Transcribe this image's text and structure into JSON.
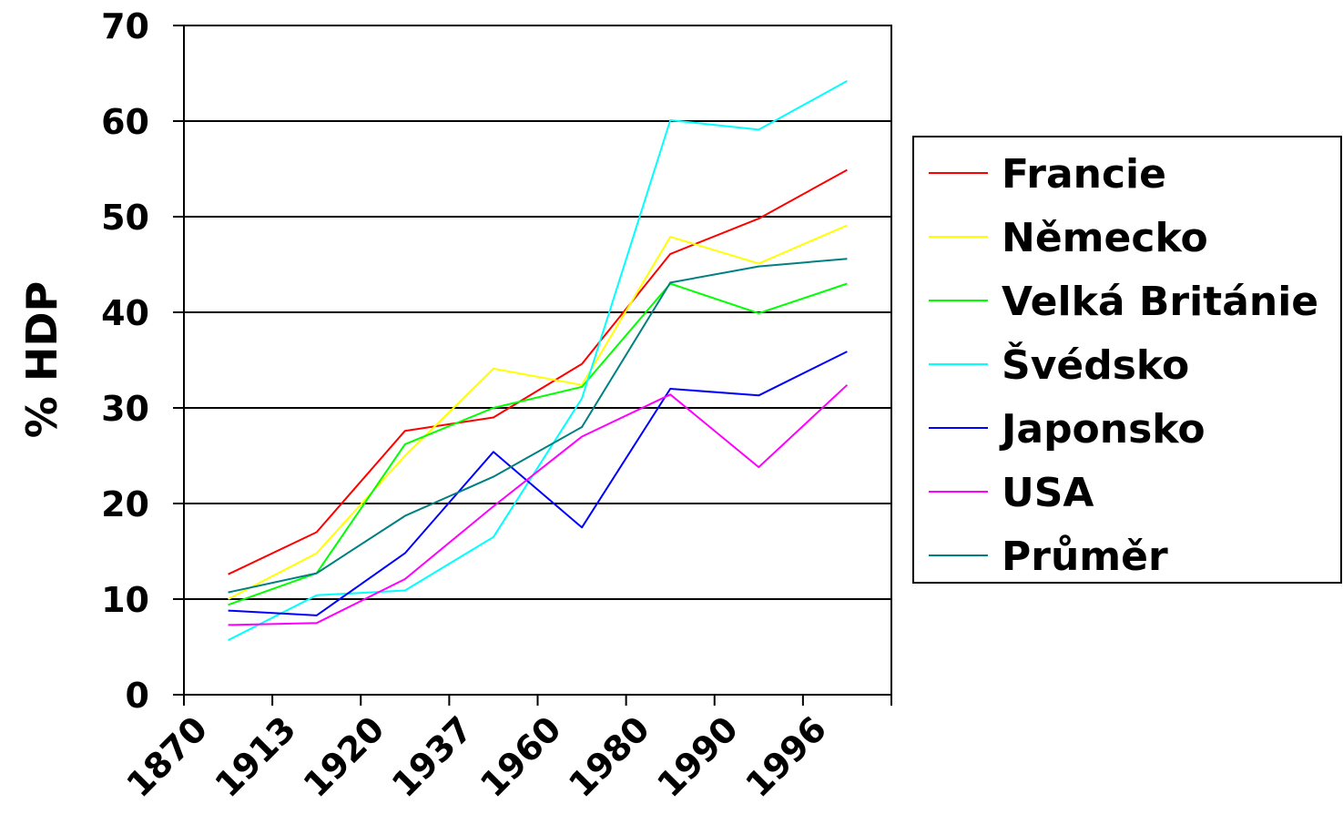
{
  "chart_data": {
    "type": "line",
    "title": "",
    "xlabel": "",
    "ylabel": "% HDP",
    "categories": [
      "1870",
      "1913",
      "1920",
      "1937",
      "1960",
      "1980",
      "1990",
      "1996"
    ],
    "ylim": [
      0,
      70
    ],
    "yticks": [
      0,
      10,
      20,
      30,
      40,
      50,
      60,
      70
    ],
    "grid": true,
    "legend_position": "right",
    "series": [
      {
        "name": "Francie",
        "color": "#ff0000",
        "values": [
          12.6,
          17.0,
          27.6,
          29.0,
          34.6,
          46.1,
          49.8,
          54.9
        ]
      },
      {
        "name": "Německo",
        "color": "#ffff00",
        "values": [
          10.0,
          14.8,
          25.0,
          34.1,
          32.4,
          47.9,
          45.1,
          49.1
        ]
      },
      {
        "name": "Velká Británie",
        "color": "#00ff00",
        "values": [
          9.4,
          12.7,
          26.2,
          30.0,
          32.2,
          43.0,
          39.9,
          43.0
        ]
      },
      {
        "name": "Švédsko",
        "color": "#00ffff",
        "values": [
          5.7,
          10.4,
          10.9,
          16.5,
          31.0,
          60.1,
          59.1,
          64.2
        ]
      },
      {
        "name": "Japonsko",
        "color": "#0000ff",
        "values": [
          8.8,
          8.3,
          14.8,
          25.4,
          17.5,
          32.0,
          31.3,
          35.9
        ]
      },
      {
        "name": "USA",
        "color": "#ff00ff",
        "values": [
          7.3,
          7.5,
          12.1,
          19.7,
          27.0,
          31.4,
          23.8,
          32.4
        ]
      },
      {
        "name": "Průměr",
        "color": "#008080",
        "values": [
          10.7,
          12.7,
          18.7,
          22.8,
          28.0,
          43.1,
          44.8,
          45.6
        ]
      }
    ]
  }
}
